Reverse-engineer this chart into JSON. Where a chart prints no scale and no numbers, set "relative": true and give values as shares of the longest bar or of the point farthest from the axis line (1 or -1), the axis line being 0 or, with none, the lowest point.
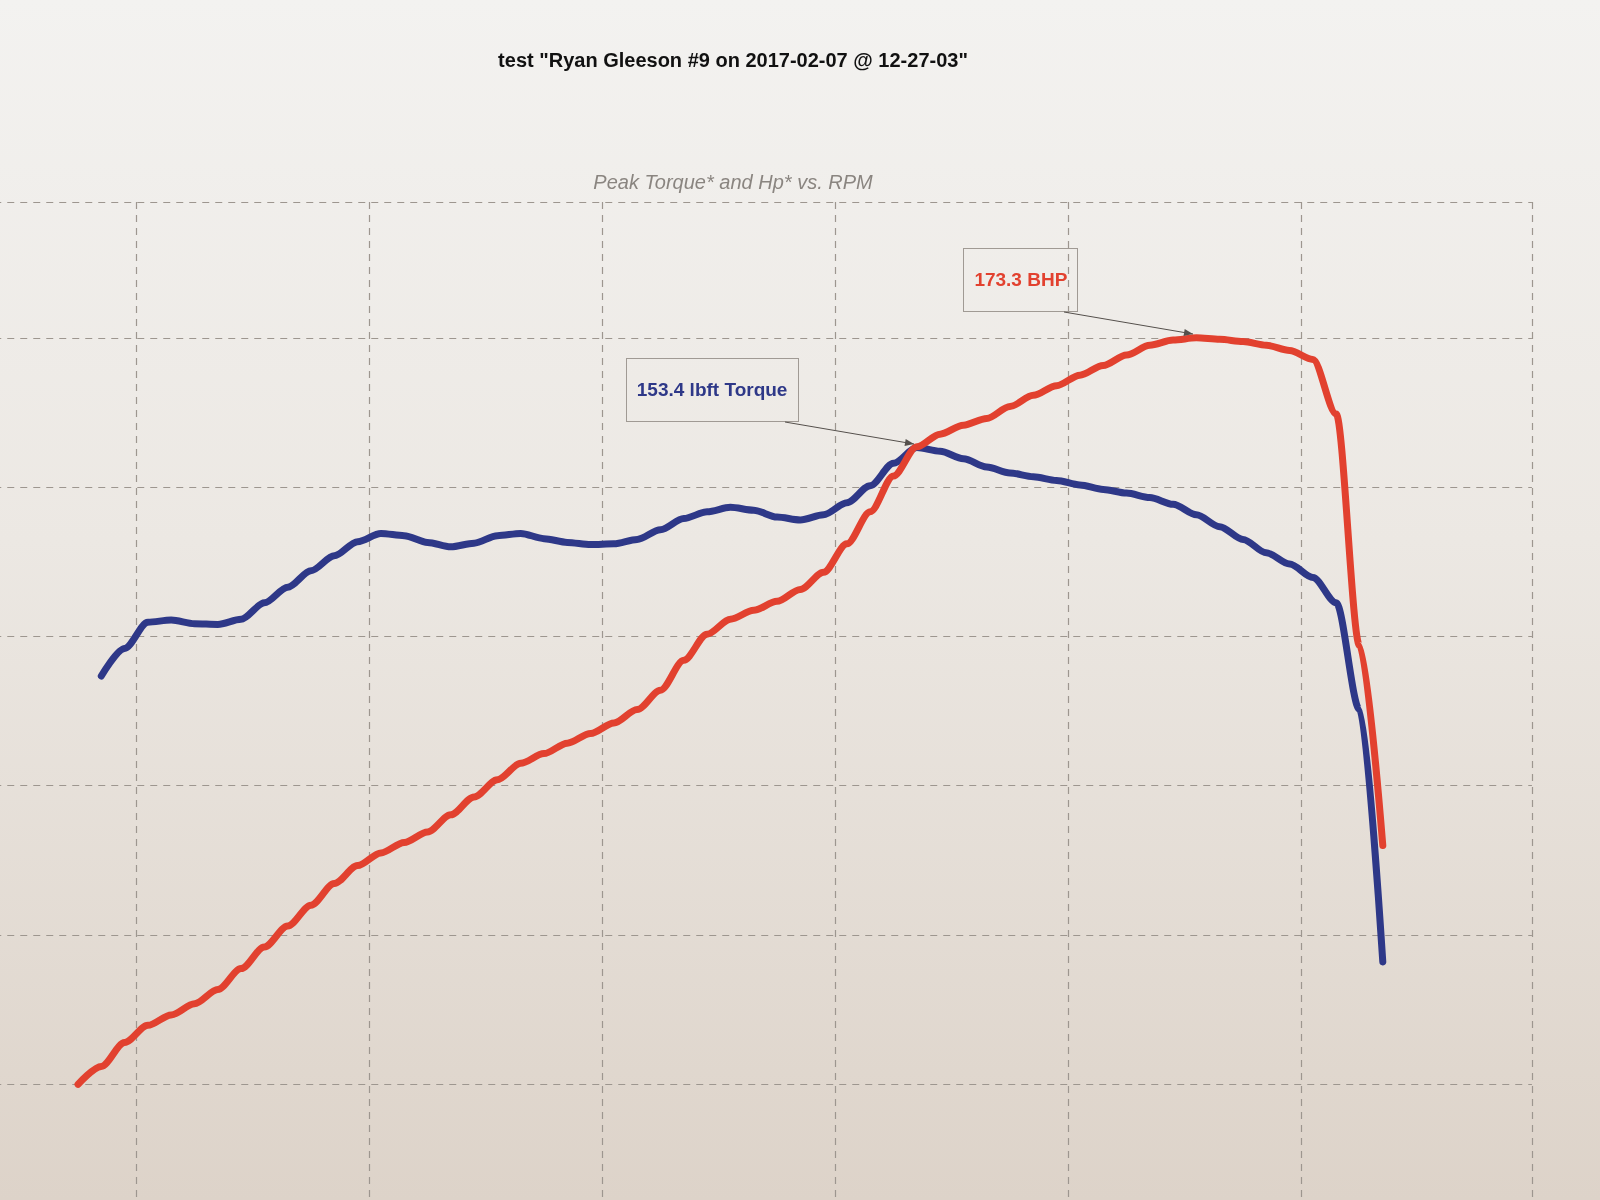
{
  "chart_data": {
    "type": "line",
    "title": "test \"Ryan Gleeson #9 on 2017-02-07 @ 12-27-03\"",
    "subtitle": "Peak Torque* and Hp* vs. RPM",
    "relative": true,
    "grid": true,
    "categories": [
      null,
      null,
      null,
      null,
      null,
      null,
      null,
      null,
      null,
      null,
      null,
      null,
      null,
      null,
      null,
      null,
      null,
      null,
      null,
      null,
      null,
      null,
      null,
      null,
      null,
      null,
      null,
      null,
      null,
      null,
      null,
      null,
      null,
      null,
      null,
      null,
      null,
      null,
      null,
      null,
      null,
      null,
      null,
      null,
      null,
      null,
      null,
      null,
      null,
      null,
      null,
      null,
      null,
      null,
      null,
      null,
      null
    ],
    "series": [
      {
        "color": "#2e3888",
        "values": [
          null,
          0.547,
          0.584,
          0.619,
          0.622,
          0.617,
          0.616,
          0.623,
          0.645,
          0.666,
          0.688,
          0.708,
          0.727,
          0.738,
          0.735,
          0.726,
          0.72,
          0.725,
          0.735,
          0.738,
          0.731,
          0.726,
          0.723,
          0.724,
          0.73,
          0.743,
          0.758,
          0.767,
          0.773,
          0.769,
          0.76,
          0.756,
          0.763,
          0.779,
          0.802,
          0.832,
          0.853,
          0.848,
          0.838,
          0.827,
          0.819,
          0.814,
          0.809,
          0.803,
          0.797,
          0.792,
          0.786,
          0.777,
          0.763,
          0.747,
          0.73,
          0.712,
          0.697,
          0.679,
          0.645,
          0.502,
          0.164
        ]
      },
      {
        "color": "#e2412f",
        "values": [
          0,
          0.024,
          0.056,
          0.079,
          0.093,
          0.108,
          0.127,
          0.155,
          0.184,
          0.212,
          0.24,
          0.269,
          0.293,
          0.31,
          0.324,
          0.338,
          0.361,
          0.385,
          0.408,
          0.43,
          0.443,
          0.457,
          0.47,
          0.484,
          0.502,
          0.528,
          0.568,
          0.603,
          0.623,
          0.635,
          0.647,
          0.663,
          0.686,
          0.724,
          0.767,
          0.815,
          0.854,
          0.871,
          0.883,
          0.892,
          0.908,
          0.923,
          0.936,
          0.95,
          0.963,
          0.977,
          0.99,
          0.997,
          1,
          0.998,
          0.995,
          0.99,
          0.983,
          0.971,
          0.898,
          0.588,
          0.32
        ]
      }
    ],
    "annotations": [
      "153.4 lbft Torque",
      "173.3 BHP"
    ]
  }
}
